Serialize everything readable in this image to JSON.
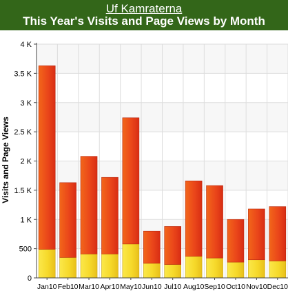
{
  "header": {
    "site_name": "Uf Kamraterna",
    "title": "This Year's Visits and Page Views by Month"
  },
  "colors": {
    "header_bg": "#336619",
    "visits_bar": "#f6d92a",
    "pageviews_bar": "#e8401a",
    "grid": "#dddddd"
  },
  "chart_data": {
    "type": "bar",
    "stacked": true,
    "title": "This Year's Visits and Page Views by Month",
    "xlabel": "",
    "ylabel": "Visits and Page Views",
    "ylim": [
      0,
      4000
    ],
    "yticks": [
      0,
      500,
      1000,
      1500,
      2000,
      2500,
      3000,
      3500,
      4000
    ],
    "ytick_labels": [
      "0",
      "500",
      "1 K",
      "1.5 K",
      "2 K",
      "2.5 K",
      "3 K",
      "3.5 K",
      "4 K"
    ],
    "grid": true,
    "categories": [
      "Jan10",
      "Feb10",
      "Mar10",
      "Apr10",
      "May10",
      "Jun10",
      "Jul10",
      "Aug10",
      "Sep10",
      "Oct10",
      "Nov10",
      "Dec10"
    ],
    "series": [
      {
        "color": "#f6d92a",
        "values": [
          490,
          350,
          410,
          410,
          580,
          250,
          230,
          370,
          340,
          270,
          310,
          290
        ]
      },
      {
        "color": "#e8401a",
        "values": [
          3140,
          1280,
          1670,
          1310,
          2160,
          550,
          650,
          1290,
          1240,
          730,
          870,
          930
        ]
      }
    ]
  }
}
